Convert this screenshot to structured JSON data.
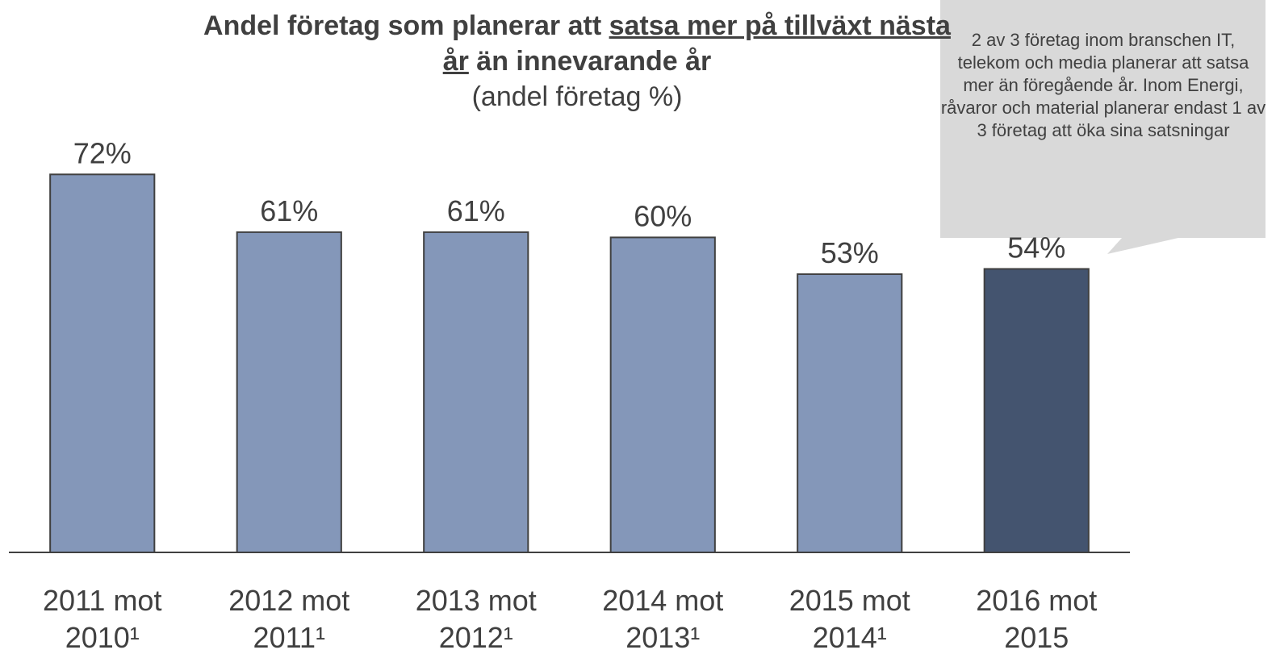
{
  "chart_data": {
    "type": "bar",
    "title": "Andel företag som planerar att",
    "title_emphasis": "satsa mer på tillväxt nästa år",
    "title_end": "än innevarande år",
    "subtitle": "(andel företag %)",
    "annotation": "2 av 3 företag inom branschen IT, telekom och media planerar att satsa mer än föregående år. Inom Energi, råvaror och material planerar endast 1 av 3 företag att öka sina satsningar",
    "categories": [
      "2011 mot 2010¹",
      "2012 mot 2011¹",
      "2013 mot 2012¹",
      "2014 mot 2013¹",
      "2015 mot 2014¹",
      "2016 mot 2015"
    ],
    "values": [
      72,
      61,
      61,
      60,
      53,
      54
    ],
    "value_labels": [
      "72%",
      "61%",
      "61%",
      "60%",
      "53%",
      "54%"
    ],
    "colors": [
      "#8497b9",
      "#8497b9",
      "#8497b9",
      "#8497b9",
      "#8497b9",
      "#44546f"
    ],
    "ylim": [
      0,
      100
    ]
  }
}
